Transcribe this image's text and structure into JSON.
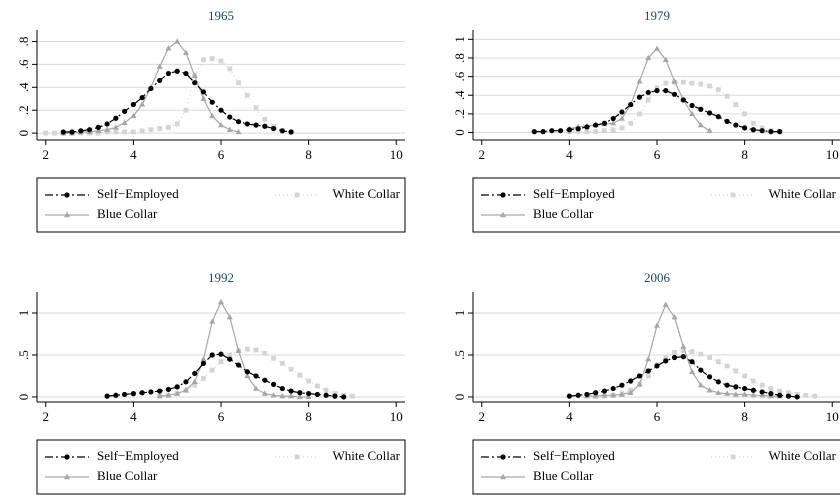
{
  "chart_data": [
    {
      "type": "line",
      "title": "1965",
      "xlim": [
        1.8,
        10.2
      ],
      "xticks": [
        2,
        4,
        6,
        8,
        10
      ],
      "ylim": [
        -0.06,
        0.9
      ],
      "yticks": [
        0,
        {
          "value": 0.2,
          "label": ".2"
        },
        {
          "value": 0.4,
          "label": ".4"
        },
        {
          "value": 0.6,
          "label": ".6"
        },
        {
          "value": 0.8,
          "label": ".8"
        }
      ],
      "grid": true,
      "series": [
        {
          "name": "Self−Employed",
          "color": "#000000",
          "marker": "circle",
          "x": [
            2.4,
            2.6,
            2.8,
            3.0,
            3.2,
            3.4,
            3.6,
            3.8,
            4.0,
            4.2,
            4.4,
            4.6,
            4.8,
            5.0,
            5.2,
            5.4,
            5.6,
            5.8,
            6.0,
            6.2,
            6.4,
            6.6,
            6.8,
            7.0,
            7.2,
            7.4,
            7.6
          ],
          "values": [
            0.01,
            0.01,
            0.02,
            0.03,
            0.05,
            0.08,
            0.13,
            0.19,
            0.25,
            0.31,
            0.39,
            0.46,
            0.52,
            0.54,
            0.52,
            0.44,
            0.36,
            0.27,
            0.2,
            0.14,
            0.1,
            0.08,
            0.07,
            0.06,
            0.04,
            0.02,
            0.01
          ]
        },
        {
          "name": "White Collar",
          "color": "#d4d4d4",
          "marker": "square",
          "x": [
            2.0,
            2.2,
            2.4,
            2.6,
            2.8,
            3.0,
            3.2,
            3.4,
            3.6,
            3.8,
            4.0,
            4.2,
            4.4,
            4.6,
            4.8,
            5.0,
            5.2,
            5.4,
            5.6,
            5.8,
            6.0,
            6.2,
            6.4,
            6.6,
            6.8,
            7.0,
            7.2,
            7.4,
            7.6
          ],
          "values": [
            0,
            0,
            0,
            0,
            0,
            0,
            0,
            0.01,
            0.01,
            0.01,
            0.01,
            0.02,
            0.03,
            0.04,
            0.05,
            0.08,
            0.2,
            0.5,
            0.64,
            0.65,
            0.63,
            0.56,
            0.44,
            0.33,
            0.22,
            0.12,
            0.06,
            0.02,
            0.01
          ]
        },
        {
          "name": "Blue Collar",
          "color": "#a6a6a6",
          "marker": "triangle",
          "x": [
            2.4,
            2.6,
            2.8,
            3.0,
            3.2,
            3.4,
            3.6,
            3.8,
            4.0,
            4.2,
            4.4,
            4.6,
            4.8,
            5.0,
            5.2,
            5.4,
            5.6,
            5.8,
            6.0,
            6.2,
            6.4
          ],
          "values": [
            0,
            0,
            0.01,
            0.01,
            0.02,
            0.03,
            0.05,
            0.09,
            0.15,
            0.25,
            0.4,
            0.58,
            0.74,
            0.8,
            0.7,
            0.5,
            0.3,
            0.15,
            0.07,
            0.03,
            0.01
          ]
        }
      ]
    },
    {
      "type": "line",
      "title": "1979",
      "xlim": [
        1.8,
        10.2
      ],
      "xticks": [
        2,
        4,
        6,
        8,
        10
      ],
      "ylim": [
        -0.08,
        1.1
      ],
      "yticks": [
        0,
        {
          "value": 0.2,
          "label": ".2"
        },
        {
          "value": 0.4,
          "label": ".4"
        },
        {
          "value": 0.6,
          "label": ".6"
        },
        {
          "value": 0.8,
          "label": ".8"
        },
        1
      ],
      "grid": true,
      "series": [
        {
          "name": "Self−Employed",
          "color": "#000000",
          "marker": "circle",
          "x": [
            3.2,
            3.4,
            3.6,
            3.8,
            4.0,
            4.2,
            4.4,
            4.6,
            4.8,
            5.0,
            5.2,
            5.4,
            5.6,
            5.8,
            6.0,
            6.2,
            6.4,
            6.6,
            6.8,
            7.0,
            7.2,
            7.4,
            7.6,
            7.8,
            8.0,
            8.2,
            8.4,
            8.6,
            8.8
          ],
          "values": [
            0.01,
            0.01,
            0.02,
            0.02,
            0.03,
            0.04,
            0.06,
            0.08,
            0.1,
            0.15,
            0.22,
            0.3,
            0.38,
            0.43,
            0.45,
            0.45,
            0.41,
            0.35,
            0.29,
            0.25,
            0.21,
            0.17,
            0.12,
            0.08,
            0.05,
            0.03,
            0.02,
            0.01,
            0.01
          ]
        },
        {
          "name": "White Collar",
          "color": "#d4d4d4",
          "marker": "square",
          "x": [
            4.0,
            4.2,
            4.4,
            4.6,
            4.8,
            5.0,
            5.2,
            5.4,
            5.6,
            5.8,
            6.0,
            6.2,
            6.4,
            6.6,
            6.8,
            7.0,
            7.2,
            7.4,
            7.6,
            7.8,
            8.0,
            8.2,
            8.4,
            8.6,
            8.8
          ],
          "values": [
            0.01,
            0.01,
            0.01,
            0.01,
            0.02,
            0.03,
            0.05,
            0.1,
            0.2,
            0.35,
            0.48,
            0.53,
            0.54,
            0.54,
            0.53,
            0.52,
            0.5,
            0.46,
            0.39,
            0.3,
            0.2,
            0.1,
            0.05,
            0.02,
            0.01
          ]
        },
        {
          "name": "Blue Collar",
          "color": "#a6a6a6",
          "marker": "triangle",
          "x": [
            4.0,
            4.2,
            4.4,
            4.6,
            4.8,
            5.0,
            5.2,
            5.4,
            5.6,
            5.8,
            6.0,
            6.2,
            6.4,
            6.6,
            6.8,
            7.0,
            7.2
          ],
          "values": [
            0.04,
            0.06,
            0.07,
            0.08,
            0.09,
            0.1,
            0.15,
            0.3,
            0.55,
            0.8,
            0.9,
            0.78,
            0.55,
            0.35,
            0.2,
            0.08,
            0.02
          ]
        }
      ]
    },
    {
      "type": "line",
      "title": "1992",
      "xlim": [
        1.8,
        10.2
      ],
      "xticks": [
        2,
        4,
        6,
        8,
        10
      ],
      "ylim": [
        -0.06,
        1.25
      ],
      "yticks": [
        0,
        {
          "value": 0.5,
          "label": ".5"
        },
        1
      ],
      "grid": true,
      "series": [
        {
          "name": "Self−Employed",
          "color": "#000000",
          "marker": "circle",
          "x": [
            3.4,
            3.6,
            3.8,
            4.0,
            4.2,
            4.4,
            4.6,
            4.8,
            5.0,
            5.2,
            5.4,
            5.6,
            5.8,
            6.0,
            6.2,
            6.4,
            6.6,
            6.8,
            7.0,
            7.2,
            7.4,
            7.6,
            7.8,
            8.0,
            8.2,
            8.4,
            8.6,
            8.8
          ],
          "values": [
            0.01,
            0.02,
            0.03,
            0.04,
            0.05,
            0.06,
            0.07,
            0.09,
            0.12,
            0.18,
            0.28,
            0.4,
            0.5,
            0.51,
            0.45,
            0.38,
            0.3,
            0.25,
            0.2,
            0.15,
            0.1,
            0.07,
            0.05,
            0.04,
            0.03,
            0.02,
            0.01,
            0
          ]
        },
        {
          "name": "White Collar",
          "color": "#d4d4d4",
          "marker": "square",
          "x": [
            4.6,
            4.8,
            5.0,
            5.2,
            5.4,
            5.6,
            5.8,
            6.0,
            6.2,
            6.4,
            6.6,
            6.8,
            7.0,
            7.2,
            7.4,
            7.6,
            7.8,
            8.0,
            8.2,
            8.4,
            8.6,
            8.8,
            9.0
          ],
          "values": [
            0.01,
            0.02,
            0.04,
            0.08,
            0.14,
            0.22,
            0.32,
            0.42,
            0.5,
            0.55,
            0.57,
            0.56,
            0.52,
            0.46,
            0.4,
            0.33,
            0.26,
            0.19,
            0.13,
            0.08,
            0.04,
            0.02,
            0.01
          ]
        },
        {
          "name": "Blue Collar",
          "color": "#a6a6a6",
          "marker": "triangle",
          "x": [
            4.6,
            4.8,
            5.0,
            5.2,
            5.4,
            5.6,
            5.8,
            6.0,
            6.2,
            6.4,
            6.6,
            6.8,
            7.0,
            7.2,
            7.4,
            7.6,
            7.8,
            8.0
          ],
          "values": [
            0.01,
            0.02,
            0.04,
            0.08,
            0.18,
            0.45,
            0.9,
            1.13,
            0.95,
            0.55,
            0.25,
            0.1,
            0.04,
            0.02,
            0.01,
            0.01,
            0,
            0
          ]
        }
      ]
    },
    {
      "type": "line",
      "title": "2006",
      "xlim": [
        1.8,
        10.2
      ],
      "xticks": [
        2,
        4,
        6,
        8,
        10
      ],
      "ylim": [
        -0.06,
        1.25
      ],
      "yticks": [
        0,
        {
          "value": 0.5,
          "label": ".5"
        },
        1
      ],
      "grid": true,
      "series": [
        {
          "name": "Self−Employed",
          "color": "#000000",
          "marker": "circle",
          "x": [
            4.0,
            4.2,
            4.4,
            4.6,
            4.8,
            5.0,
            5.2,
            5.4,
            5.6,
            5.8,
            6.0,
            6.2,
            6.4,
            6.6,
            6.8,
            7.0,
            7.2,
            7.4,
            7.6,
            7.8,
            8.0,
            8.2,
            8.4,
            8.6,
            8.8,
            9.0,
            9.2
          ],
          "values": [
            0.01,
            0.02,
            0.03,
            0.05,
            0.07,
            0.1,
            0.14,
            0.19,
            0.25,
            0.31,
            0.37,
            0.43,
            0.47,
            0.48,
            0.42,
            0.32,
            0.24,
            0.18,
            0.14,
            0.12,
            0.1,
            0.08,
            0.06,
            0.04,
            0.02,
            0.01,
            0
          ]
        },
        {
          "name": "White Collar",
          "color": "#d4d4d4",
          "marker": "square",
          "x": [
            4.6,
            4.8,
            5.0,
            5.2,
            5.4,
            5.6,
            5.8,
            6.0,
            6.2,
            6.4,
            6.6,
            6.8,
            7.0,
            7.2,
            7.4,
            7.6,
            7.8,
            8.0,
            8.2,
            8.4,
            8.6,
            8.8,
            9.0,
            9.2,
            9.4,
            9.6
          ],
          "values": [
            0.01,
            0.01,
            0.02,
            0.04,
            0.08,
            0.15,
            0.25,
            0.38,
            0.47,
            0.53,
            0.55,
            0.54,
            0.51,
            0.47,
            0.42,
            0.37,
            0.31,
            0.25,
            0.19,
            0.14,
            0.1,
            0.07,
            0.05,
            0.03,
            0.02,
            0.01
          ]
        },
        {
          "name": "Blue Collar",
          "color": "#a6a6a6",
          "marker": "triangle",
          "x": [
            4.4,
            4.6,
            4.8,
            5.0,
            5.2,
            5.4,
            5.6,
            5.8,
            6.0,
            6.2,
            6.4,
            6.6,
            6.8,
            7.0,
            7.2,
            7.4,
            7.6,
            7.8,
            8.0,
            8.2,
            8.4,
            8.6,
            8.8
          ],
          "values": [
            0.01,
            0.01,
            0.02,
            0.02,
            0.03,
            0.05,
            0.15,
            0.45,
            0.85,
            1.1,
            0.95,
            0.6,
            0.3,
            0.14,
            0.08,
            0.05,
            0.04,
            0.03,
            0.03,
            0.02,
            0.02,
            0.01,
            0.01
          ]
        }
      ]
    }
  ]
}
